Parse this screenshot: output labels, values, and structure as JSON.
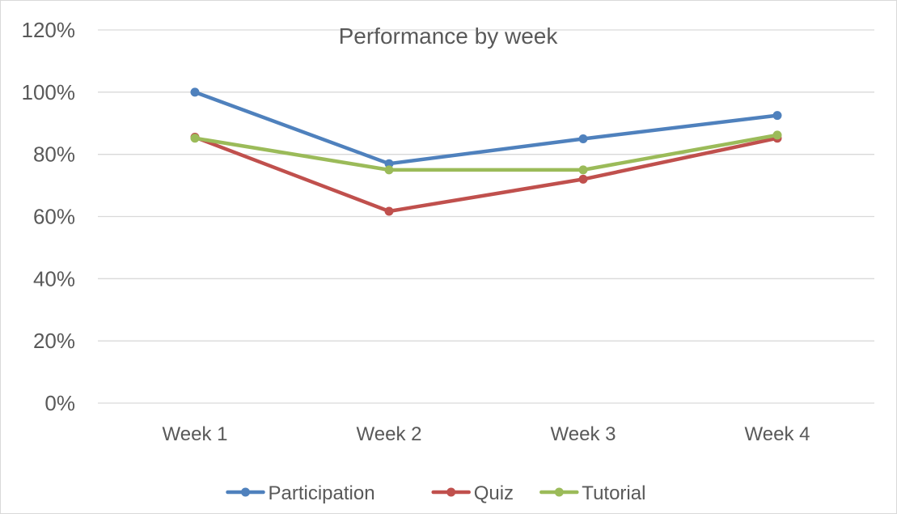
{
  "chart_data": {
    "type": "line",
    "title": "Performance by week",
    "xlabel": "",
    "ylabel": "",
    "categories": [
      "Week 1",
      "Week 2",
      "Week 3",
      "Week 4"
    ],
    "ylim": [
      0,
      1.2
    ],
    "yticks": [
      0,
      0.2,
      0.4,
      0.6,
      0.8,
      1.0,
      1.2
    ],
    "ytick_labels": [
      "0%",
      "20%",
      "40%",
      "60%",
      "80%",
      "100%",
      "120%"
    ],
    "grid": true,
    "legend_position": "bottom",
    "series": [
      {
        "name": "Participation",
        "color": "#4f81bd",
        "values": [
          1.0,
          0.77,
          0.85,
          0.925
        ]
      },
      {
        "name": "Quiz",
        "color": "#c0504d",
        "values": [
          0.855,
          0.617,
          0.72,
          0.852
        ]
      },
      {
        "name": "Tutorial",
        "color": "#9bbb59",
        "values": [
          0.852,
          0.75,
          0.75,
          0.862
        ]
      }
    ]
  }
}
